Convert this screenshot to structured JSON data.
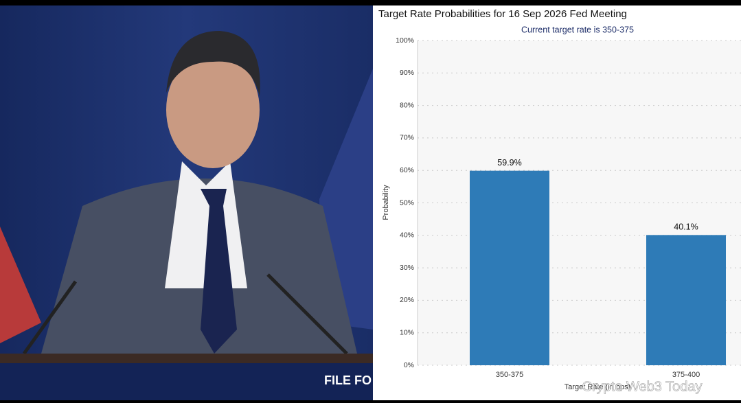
{
  "chart_data": {
    "type": "bar",
    "title": "Target Rate Probabilities for 16 Sep 2026 Fed Meeting",
    "subtitle": "Current target rate is 350-375",
    "x_label": "Target Rate (in bps)",
    "y_label": "Probability",
    "categories": [
      "350-375",
      "375-400"
    ],
    "values": [
      59.9,
      40.1
    ],
    "value_labels": [
      "59.9%",
      "40.1%"
    ],
    "color": "#2e7bb7",
    "ylim": [
      0,
      100
    ],
    "yticks": [
      {
        "value": 0,
        "label": "0%"
      },
      {
        "value": 10,
        "label": "10%"
      },
      {
        "value": 20,
        "label": "20%"
      },
      {
        "value": 30,
        "label": "30%"
      },
      {
        "value": 40,
        "label": "40%"
      },
      {
        "value": 50,
        "label": "50%"
      },
      {
        "value": 60,
        "label": "60%"
      },
      {
        "value": 70,
        "label": "70%"
      },
      {
        "value": 80,
        "label": "80%"
      },
      {
        "value": 90,
        "label": "90%"
      },
      {
        "value": 100,
        "label": "100%"
      }
    ],
    "grid": true
  },
  "photo": {
    "podium_text": "FILE FO"
  },
  "watermark": "Crypto Web3 Today"
}
